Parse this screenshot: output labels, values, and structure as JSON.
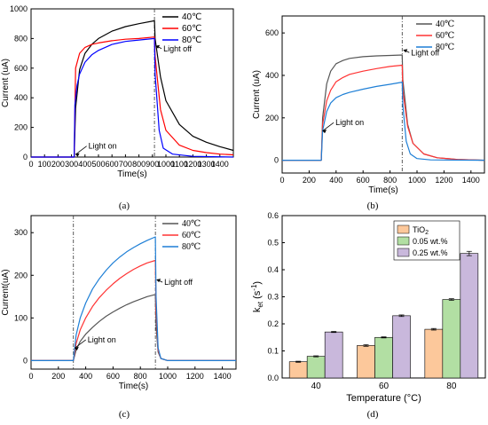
{
  "chart_data": [
    {
      "type": "line",
      "panel_label": "(a)",
      "xlabel": "Time(s)",
      "ylabel": "Current (uA)",
      "xlim": [
        0,
        1500
      ],
      "ylim": [
        0,
        1000
      ],
      "xticks": [
        0,
        100,
        200,
        300,
        400,
        500,
        600,
        700,
        800,
        900,
        1000,
        1100,
        1200,
        1300,
        1400
      ],
      "yticks": [
        0,
        200,
        400,
        600,
        800,
        1000
      ],
      "legend_position": "top-right",
      "light_on_x": 320,
      "light_off_x": 915,
      "annotations": [
        {
          "text": "Light on",
          "x": 320,
          "y": 20
        },
        {
          "text": "Light off",
          "x": 915,
          "y": 750
        }
      ],
      "series": [
        {
          "name": "40℃",
          "color": "#000000",
          "x": [
            0,
            320,
            330,
            360,
            400,
            450,
            500,
            600,
            700,
            800,
            915,
            920,
            960,
            1000,
            1100,
            1200,
            1300,
            1400,
            1500
          ],
          "y": [
            0,
            0,
            330,
            590,
            700,
            760,
            800,
            850,
            880,
            900,
            920,
            800,
            540,
            380,
            220,
            140,
            100,
            70,
            45
          ]
        },
        {
          "name": "60℃",
          "color": "#ff0000",
          "x": [
            0,
            320,
            330,
            360,
            400,
            450,
            500,
            600,
            700,
            800,
            915,
            920,
            960,
            1000,
            1100,
            1200,
            1300,
            1400,
            1500
          ],
          "y": [
            0,
            0,
            600,
            700,
            740,
            760,
            770,
            785,
            795,
            800,
            810,
            680,
            320,
            180,
            80,
            45,
            30,
            20,
            15
          ]
        },
        {
          "name": "80℃",
          "color": "#0000ff",
          "x": [
            0,
            320,
            325,
            340,
            360,
            400,
            450,
            500,
            600,
            700,
            800,
            915,
            920,
            950,
            980,
            1050,
            1200,
            1500
          ],
          "y": [
            0,
            0,
            350,
            480,
            560,
            640,
            690,
            720,
            760,
            780,
            790,
            800,
            560,
            180,
            60,
            20,
            5,
            0
          ]
        }
      ]
    },
    {
      "type": "line",
      "panel_label": "(b)",
      "xlabel": "Time(s)",
      "ylabel": "Current (uA)",
      "xlim": [
        0,
        1500
      ],
      "ylim": [
        -60,
        680
      ],
      "xticks": [
        0,
        200,
        400,
        600,
        800,
        1000,
        1200,
        1400
      ],
      "yticks": [
        0,
        200,
        400,
        600
      ],
      "legend_position": "top-right",
      "light_on_x": 290,
      "light_off_x": 890,
      "annotations": [
        {
          "text": "Light on",
          "x": 290,
          "y": 140
        },
        {
          "text": "Light off",
          "x": 890,
          "y": 520
        }
      ],
      "series": [
        {
          "name": "40℃",
          "color": "#555555",
          "x": [
            0,
            290,
            300,
            330,
            360,
            400,
            450,
            500,
            600,
            700,
            800,
            890,
            895,
            930,
            970,
            1050,
            1150,
            1300,
            1500
          ],
          "y": [
            0,
            0,
            200,
            360,
            420,
            455,
            470,
            480,
            488,
            492,
            494,
            496,
            380,
            170,
            80,
            30,
            12,
            4,
            0
          ]
        },
        {
          "name": "60℃",
          "color": "#ff3333",
          "x": [
            0,
            290,
            300,
            330,
            360,
            400,
            450,
            500,
            600,
            700,
            800,
            890,
            895,
            930,
            970,
            1050,
            1150,
            1300,
            1500
          ],
          "y": [
            0,
            0,
            170,
            280,
            330,
            370,
            390,
            405,
            420,
            432,
            442,
            448,
            330,
            160,
            80,
            30,
            12,
            4,
            0
          ]
        },
        {
          "name": "80℃",
          "color": "#1e7fd6",
          "x": [
            0,
            290,
            300,
            330,
            360,
            400,
            450,
            500,
            600,
            700,
            800,
            890,
            895,
            920,
            950,
            1000,
            1100,
            1500
          ],
          "y": [
            0,
            0,
            140,
            230,
            270,
            295,
            310,
            320,
            335,
            348,
            358,
            368,
            260,
            90,
            30,
            8,
            2,
            0
          ]
        }
      ]
    },
    {
      "type": "line",
      "panel_label": "(c)",
      "xlabel": "Time(s)",
      "ylabel": "Current(uA)",
      "xlim": [
        0,
        1500
      ],
      "ylim": [
        -20,
        340
      ],
      "xticks": [
        0,
        200,
        400,
        600,
        800,
        1000,
        1200,
        1400
      ],
      "yticks": [
        0,
        100,
        200,
        300
      ],
      "legend_position": "top-right",
      "light_on_x": 310,
      "light_off_x": 910,
      "annotations": [
        {
          "text": "Light on",
          "x": 310,
          "y": 30
        },
        {
          "text": "Light off",
          "x": 910,
          "y": 190
        }
      ],
      "series": [
        {
          "name": "40℃",
          "color": "#555555",
          "x": [
            0,
            310,
            330,
            360,
            400,
            450,
            500,
            550,
            600,
            650,
            700,
            750,
            800,
            850,
            910,
            915,
            930,
            950,
            1000,
            1500
          ],
          "y": [
            0,
            0,
            25,
            45,
            62,
            78,
            92,
            104,
            114,
            123,
            131,
            138,
            144,
            150,
            155,
            80,
            20,
            5,
            0,
            0
          ]
        },
        {
          "name": "60℃",
          "color": "#ff3333",
          "x": [
            0,
            310,
            330,
            360,
            400,
            450,
            500,
            550,
            600,
            650,
            700,
            750,
            800,
            850,
            910,
            915,
            930,
            950,
            1000,
            1500
          ],
          "y": [
            0,
            0,
            40,
            72,
            100,
            127,
            148,
            165,
            180,
            193,
            204,
            214,
            222,
            229,
            235,
            120,
            25,
            5,
            0,
            0
          ]
        },
        {
          "name": "80℃",
          "color": "#1e7fd6",
          "x": [
            0,
            310,
            330,
            360,
            400,
            450,
            500,
            550,
            600,
            650,
            700,
            750,
            800,
            850,
            910,
            915,
            930,
            950,
            1000,
            1500
          ],
          "y": [
            0,
            0,
            60,
            100,
            135,
            168,
            192,
            212,
            229,
            243,
            255,
            265,
            274,
            282,
            290,
            150,
            30,
            5,
            0,
            0
          ]
        }
      ]
    },
    {
      "type": "bar",
      "panel_label": "(d)",
      "categories": [
        "40",
        "60",
        "80"
      ],
      "xlabel": "Temperature (°C)",
      "ylabel_main": "k",
      "ylabel_sub": "et",
      "ylabel_units_main": " (s",
      "ylabel_units_sup": "-1",
      "ylabel_units_end": ")",
      "ylim": [
        0,
        0.6
      ],
      "yticks": [
        0.0,
        0.1,
        0.2,
        0.3,
        0.4,
        0.5,
        0.6
      ],
      "legend_position": "top-left",
      "series": [
        {
          "name_main": "TiO",
          "name_sub": "2",
          "color": "#fcc89b",
          "values": [
            0.06,
            0.12,
            0.18
          ],
          "errors": [
            0.002,
            0.003,
            0.003
          ]
        },
        {
          "name_main": "0.05 wt.%",
          "name_sub": "",
          "color": "#b2dfa3",
          "values": [
            0.08,
            0.15,
            0.29
          ],
          "errors": [
            0.002,
            0.002,
            0.003
          ]
        },
        {
          "name_main": "0.25 wt.%",
          "name_sub": "",
          "color": "#c9b8dc",
          "values": [
            0.17,
            0.23,
            0.46
          ],
          "errors": [
            0.002,
            0.003,
            0.008
          ]
        }
      ]
    }
  ]
}
